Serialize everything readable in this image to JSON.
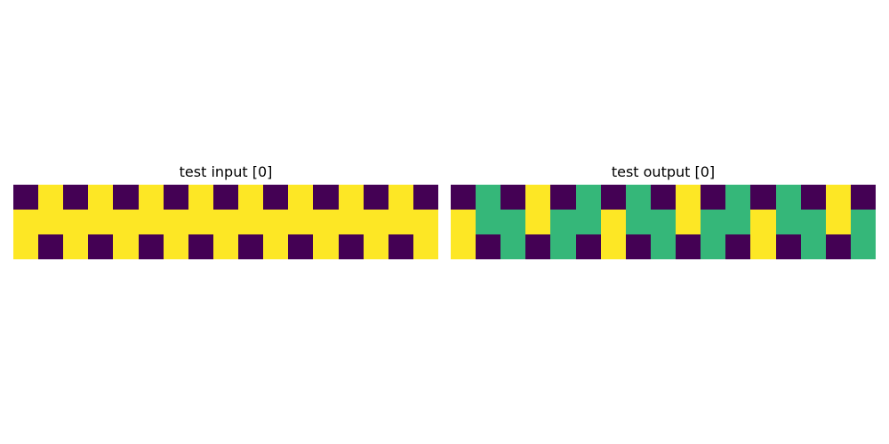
{
  "panels": [
    {
      "title": "test input [0]",
      "grid": [
        [
          0,
          1,
          0,
          1,
          0,
          1,
          0,
          1,
          0,
          1,
          0,
          1,
          0,
          1,
          0,
          1,
          0
        ],
        [
          1,
          1,
          1,
          1,
          1,
          1,
          1,
          1,
          1,
          1,
          1,
          1,
          1,
          1,
          1,
          1,
          1
        ],
        [
          1,
          0,
          1,
          0,
          1,
          0,
          1,
          0,
          1,
          0,
          1,
          0,
          1,
          0,
          1,
          0,
          1
        ]
      ]
    },
    {
      "title": "test output [0]",
      "grid": [
        [
          0,
          2,
          0,
          1,
          0,
          2,
          0,
          2,
          0,
          1,
          0,
          2,
          0,
          2,
          0,
          1,
          0
        ],
        [
          1,
          2,
          2,
          1,
          2,
          2,
          1,
          2,
          2,
          1,
          2,
          2,
          1,
          2,
          2,
          1,
          2
        ],
        [
          1,
          0,
          2,
          0,
          2,
          0,
          1,
          0,
          2,
          0,
          2,
          0,
          1,
          0,
          2,
          0,
          2
        ]
      ]
    }
  ],
  "colors": {
    "0": "#440154",
    "1": "#fde725",
    "2": "#35b779"
  }
}
